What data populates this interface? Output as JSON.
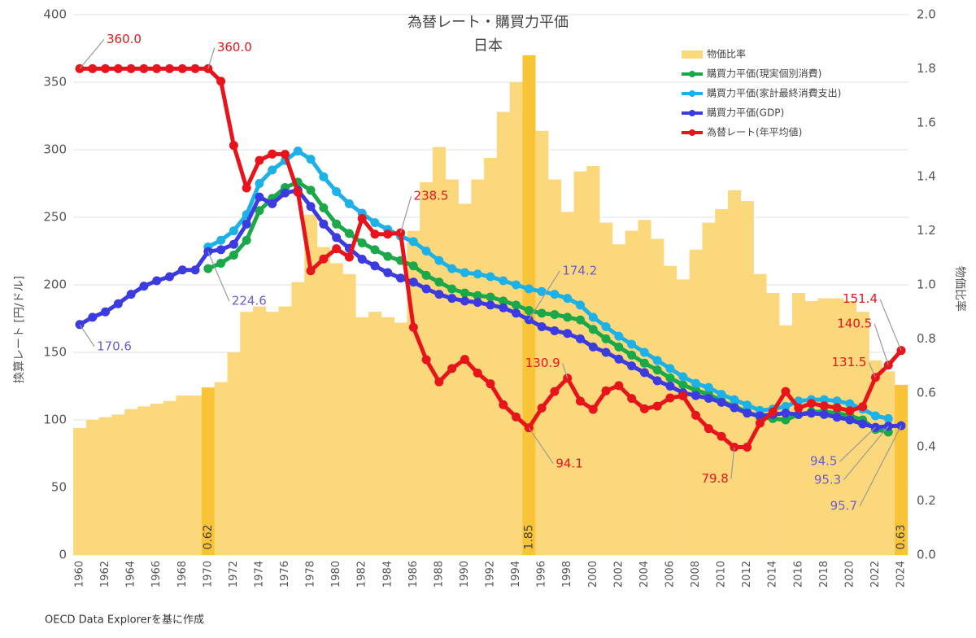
{
  "chart_data": {
    "type": "combo",
    "title": "為替レート・購買力平価",
    "subtitle": "日本",
    "y_label": "換算レート [円/ドル]",
    "y2_label": "物価比率",
    "source": "OECD Data Explorerを基に作成",
    "legend": "upper right",
    "grid": true,
    "ylim": [
      0,
      400
    ],
    "yticks": [
      0,
      50,
      100,
      150,
      200,
      250,
      300,
      350,
      400
    ],
    "y2lim": [
      0,
      2
    ],
    "y2ticks": [
      {
        "value": 0,
        "label": "0.0"
      },
      0.2,
      0.4,
      0.6,
      0.8,
      {
        "value": 1,
        "label": "1.0"
      },
      1.2,
      1.4,
      1.6,
      1.8,
      {
        "value": 2,
        "label": "2.0"
      }
    ],
    "categories": [
      "1960",
      null,
      "1962",
      null,
      "1964",
      null,
      "1966",
      null,
      "1968",
      null,
      "1970",
      null,
      "1972",
      null,
      "1974",
      null,
      "1976",
      null,
      "1978",
      null,
      "1980",
      null,
      "1982",
      null,
      "1984",
      null,
      "1986",
      null,
      "1988",
      null,
      "1990",
      null,
      "1992",
      null,
      "1994",
      null,
      "1996",
      null,
      "1998",
      null,
      "2000",
      null,
      "2002",
      null,
      "2004",
      null,
      "2006",
      null,
      "2008",
      null,
      "2010",
      null,
      "2012",
      null,
      "2014",
      null,
      "2016",
      null,
      "2018",
      null,
      "2020",
      null,
      "2022",
      null,
      "2024"
    ],
    "series": [
      {
        "name": "物価比率",
        "type": "bar",
        "axis": "y2",
        "color": "#fcd87c",
        "highlight_color": "#f9c437",
        "values": [
          0.47,
          0.5,
          0.51,
          0.52,
          0.54,
          0.55,
          0.56,
          0.57,
          0.59,
          0.59,
          0.62,
          0.64,
          0.75,
          0.9,
          0.92,
          0.9,
          0.92,
          1.01,
          1.26,
          1.14,
          1.08,
          1.04,
          0.88,
          0.9,
          0.88,
          0.86,
          1.2,
          1.38,
          1.51,
          1.39,
          1.3,
          1.39,
          1.47,
          1.64,
          1.75,
          1.85,
          1.57,
          1.39,
          1.27,
          1.42,
          1.44,
          1.23,
          1.15,
          1.2,
          1.24,
          1.17,
          1.07,
          1.02,
          1.13,
          1.23,
          1.28,
          1.35,
          1.31,
          1.04,
          0.97,
          0.85,
          0.97,
          0.94,
          0.95,
          0.95,
          0.94,
          0.9,
          0.72,
          0.68,
          0.63
        ],
        "value_labels": [
          null,
          null,
          null,
          null,
          null,
          null,
          null,
          null,
          null,
          null,
          "0.62",
          null,
          null,
          null,
          null,
          null,
          null,
          null,
          null,
          null,
          null,
          null,
          null,
          null,
          null,
          null,
          null,
          null,
          null,
          null,
          null,
          null,
          null,
          null,
          null,
          "1.85",
          null,
          null,
          null,
          null,
          null,
          null,
          null,
          null,
          null,
          null,
          null,
          null,
          null,
          null,
          null,
          null,
          null,
          null,
          null,
          null,
          null,
          null,
          null,
          null,
          null,
          null,
          null,
          null,
          "0.63"
        ]
      },
      {
        "name": "購買力平価(現実個別消費)",
        "type": "line",
        "color": "#1aa84a",
        "values": [
          null,
          null,
          null,
          null,
          null,
          null,
          null,
          null,
          null,
          null,
          212,
          216,
          222,
          233,
          255,
          264,
          272,
          276,
          270,
          257,
          245,
          238,
          231,
          226,
          221,
          218,
          214,
          207,
          202,
          197,
          194,
          192,
          191,
          188,
          185,
          181,
          179,
          178,
          176,
          174,
          167,
          160,
          154,
          148,
          142,
          137,
          131,
          126,
          122,
          119,
          114,
          110,
          106,
          102,
          101,
          100,
          104,
          106,
          106,
          105,
          103,
          100,
          93,
          91,
          null
        ],
        "value_labels": [
          null,
          null,
          null,
          null,
          null,
          null,
          null,
          null,
          null,
          null,
          null,
          null,
          null,
          null,
          null,
          null,
          null,
          null,
          null,
          null,
          null,
          null,
          null,
          null,
          null,
          null,
          null,
          null,
          null,
          null,
          null,
          null,
          null,
          null,
          null,
          null,
          null,
          null,
          null,
          null,
          null,
          null,
          null,
          null,
          null,
          null,
          null,
          null,
          null,
          null,
          null,
          null,
          null,
          null,
          null,
          null,
          null,
          null,
          null,
          null,
          null,
          null,
          null,
          null,
          null
        ]
      },
      {
        "name": "購買力平価(家計最終消費支出)",
        "type": "line",
        "color": "#1cb2e8",
        "values": [
          null,
          null,
          null,
          null,
          null,
          null,
          null,
          null,
          null,
          null,
          228,
          233,
          240,
          252,
          275,
          285,
          292,
          299,
          293,
          280,
          269,
          260,
          253,
          246,
          241,
          236,
          232,
          225,
          218,
          212,
          209,
          208,
          206,
          203,
          200,
          197,
          195,
          193,
          190,
          185,
          176,
          169,
          162,
          156,
          150,
          144,
          138,
          132,
          127,
          124,
          119,
          115,
          111,
          107,
          108,
          110,
          114,
          115,
          115,
          114,
          112,
          108,
          103,
          101,
          null
        ],
        "value_labels": [
          null,
          null,
          null,
          null,
          null,
          null,
          null,
          null,
          null,
          null,
          null,
          null,
          null,
          null,
          null,
          null,
          null,
          null,
          null,
          null,
          null,
          null,
          null,
          null,
          null,
          null,
          null,
          null,
          null,
          null,
          null,
          null,
          null,
          null,
          null,
          null,
          null,
          null,
          null,
          null,
          null,
          null,
          null,
          null,
          null,
          null,
          null,
          null,
          null,
          null,
          null,
          null,
          null,
          null,
          null,
          null,
          null,
          null,
          null,
          null,
          null,
          null,
          null,
          null,
          null
        ]
      },
      {
        "name": "購買力平価(GDP)",
        "type": "line",
        "color": "#3b3be0",
        "label_color": "#6a5fcf",
        "values": [
          170.6,
          176,
          180,
          186,
          193,
          199,
          203,
          206,
          211,
          211,
          224.6,
          226,
          230,
          245,
          265,
          260,
          268,
          270,
          258,
          245,
          235,
          227,
          219,
          214,
          209,
          205,
          202,
          197,
          193,
          190,
          188,
          187,
          185,
          183,
          179,
          174.2,
          169,
          166,
          164,
          160,
          154,
          150,
          145,
          140,
          135,
          129,
          125,
          120,
          118,
          116,
          113,
          109,
          105,
          103,
          104,
          105,
          104,
          105,
          104,
          102,
          100,
          97,
          94.5,
          95.3,
          95.7
        ],
        "value_labels": [
          "170.6",
          null,
          null,
          null,
          null,
          null,
          null,
          null,
          null,
          null,
          "224.6",
          null,
          null,
          null,
          null,
          null,
          null,
          null,
          null,
          null,
          null,
          null,
          null,
          null,
          null,
          null,
          null,
          null,
          null,
          null,
          null,
          null,
          null,
          null,
          null,
          "174.2",
          null,
          null,
          null,
          null,
          null,
          null,
          null,
          null,
          null,
          null,
          null,
          null,
          null,
          null,
          null,
          null,
          null,
          null,
          null,
          null,
          null,
          null,
          null,
          null,
          null,
          null,
          "94.5",
          "95.3",
          "95.7"
        ]
      },
      {
        "name": "為替レート(年平均値)",
        "type": "line",
        "color": "#e8141b",
        "values": [
          360,
          360,
          360,
          360,
          360,
          360,
          360,
          360,
          360,
          360,
          360,
          350.7,
          303.2,
          271.7,
          292.1,
          296.8,
          296.6,
          268.5,
          210.4,
          219.1,
          226.7,
          220.5,
          249.1,
          237.5,
          237.5,
          238.5,
          168.5,
          144.6,
          128.2,
          138,
          144.8,
          134.7,
          126.7,
          111.2,
          102.2,
          94.1,
          108.8,
          121,
          130.9,
          113.9,
          107.8,
          121.5,
          125.4,
          115.9,
          108.2,
          110.2,
          116.3,
          117.8,
          103.4,
          93.6,
          87.8,
          79.8,
          79.8,
          97.6,
          105.9,
          121,
          108.8,
          112.2,
          110.4,
          109,
          106.8,
          109.8,
          131.5,
          140.5,
          151.4
        ],
        "value_labels": [
          "360.0",
          null,
          null,
          null,
          null,
          null,
          null,
          null,
          null,
          null,
          "360.0",
          null,
          null,
          null,
          null,
          null,
          null,
          null,
          null,
          null,
          null,
          null,
          null,
          null,
          null,
          "238.5",
          null,
          null,
          null,
          null,
          null,
          null,
          null,
          null,
          null,
          "94.1",
          null,
          null,
          "130.9",
          null,
          null,
          null,
          null,
          null,
          null,
          null,
          null,
          null,
          null,
          null,
          null,
          "79.8",
          null,
          null,
          null,
          null,
          null,
          null,
          null,
          null,
          null,
          null,
          "131.5",
          "140.5",
          "151.4"
        ]
      }
    ]
  }
}
